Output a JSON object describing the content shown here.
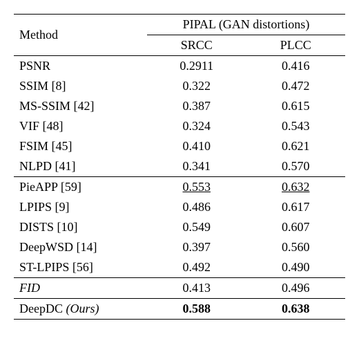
{
  "header": {
    "method": "Method",
    "title": "PIPAL (GAN distortions)",
    "col1": "SRCC",
    "col2": "PLCC"
  },
  "group1": [
    {
      "method": "PSNR",
      "ref": "",
      "srcc": "0.2911",
      "plcc": "0.416"
    },
    {
      "method": "SSIM",
      "ref": "[8]",
      "srcc": "0.322",
      "plcc": "0.472"
    },
    {
      "method": "MS-SSIM",
      "ref": "[42]",
      "srcc": "0.387",
      "plcc": "0.615"
    },
    {
      "method": "VIF",
      "ref": "[48]",
      "srcc": "0.324",
      "plcc": "0.543"
    },
    {
      "method": "FSIM",
      "ref": "[45]",
      "srcc": "0.410",
      "plcc": "0.621"
    },
    {
      "method": "NLPD",
      "ref": "[41]",
      "srcc": "0.341",
      "plcc": "0.570"
    }
  ],
  "group2": [
    {
      "method": "PieAPP",
      "ref": "[59]",
      "srcc": "0.553",
      "plcc": "0.632",
      "underline": true
    },
    {
      "method": "LPIPS",
      "ref": "[9]",
      "srcc": "0.486",
      "plcc": "0.617"
    },
    {
      "method": "DISTS",
      "ref": "[10]",
      "srcc": "0.549",
      "plcc": "0.607"
    },
    {
      "method": "DeepWSD",
      "ref": "[14]",
      "srcc": "0.397",
      "plcc": "0.560"
    },
    {
      "method": "ST-LPIPS",
      "ref": "[56]",
      "srcc": "0.492",
      "plcc": "0.490"
    }
  ],
  "group3": [
    {
      "method": "FID",
      "ref": "",
      "srcc": "0.413",
      "plcc": "0.496",
      "italic": true
    }
  ],
  "group4": [
    {
      "method": "DeepDC",
      "suffix": "(Ours)",
      "srcc": "0.588",
      "plcc": "0.638",
      "bold": true,
      "suffix_italic": true
    }
  ]
}
